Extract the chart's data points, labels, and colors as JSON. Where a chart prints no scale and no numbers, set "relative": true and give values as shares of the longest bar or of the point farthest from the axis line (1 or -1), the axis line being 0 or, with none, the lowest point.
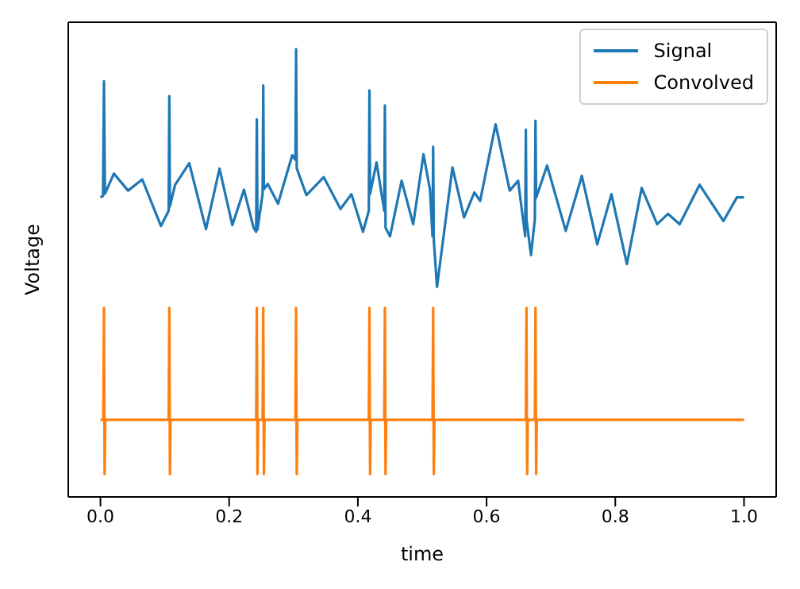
{
  "chart_data": {
    "type": "line",
    "xlabel": "time",
    "ylabel": "Voltage",
    "relative": true,
    "legend": "top right",
    "grid": false,
    "tick_labels": "x",
    "xlim": [
      -0.05,
      1.05
    ],
    "xticks": [
      {
        "value": 0,
        "label": "0.0"
      },
      {
        "value": 0.2,
        "label": "0.2"
      },
      {
        "value": 0.4,
        "label": "0.4"
      },
      {
        "value": 0.6,
        "label": "0.6"
      },
      {
        "value": 0.8,
        "label": "0.8"
      },
      {
        "value": 1,
        "label": "1.0"
      }
    ],
    "series": [
      {
        "name": "Signal",
        "color": "#1f77b4",
        "x": [
          0,
          0.004,
          0.0055,
          0.007,
          0.021,
          0.043,
          0.065,
          0.094,
          0.106,
          0.107,
          0.108,
          0.116,
          0.138,
          0.164,
          0.185,
          0.205,
          0.223,
          0.238,
          0.242,
          0.243,
          0.244,
          0.252,
          0.253,
          0.254,
          0.26,
          0.276,
          0.298,
          0.303,
          0.304,
          0.305,
          0.32,
          0.347,
          0.373,
          0.39,
          0.408,
          0.417,
          0.418,
          0.419,
          0.429,
          0.441,
          0.442,
          0.443,
          0.45,
          0.468,
          0.486,
          0.502,
          0.512,
          0.516,
          0.517,
          0.518,
          0.523,
          0.547,
          0.565,
          0.581,
          0.59,
          0.614,
          0.636,
          0.649,
          0.66,
          0.661,
          0.662,
          0.669,
          0.675,
          0.676,
          0.677,
          0.694,
          0.723,
          0.748,
          0.772,
          0.794,
          0.818,
          0.841,
          0.865,
          0.882,
          0.9,
          0.931,
          0.968,
          0.989,
          1
        ],
        "values": [
          0.669,
          0.672,
          0.928,
          0.677,
          0.722,
          0.684,
          0.709,
          0.605,
          0.639,
          0.895,
          0.649,
          0.697,
          0.745,
          0.598,
          0.733,
          0.607,
          0.686,
          0.601,
          0.592,
          0.843,
          0.597,
          0.677,
          0.919,
          0.687,
          0.699,
          0.655,
          0.763,
          0.753,
          1.0,
          0.734,
          0.674,
          0.714,
          0.643,
          0.676,
          0.592,
          0.639,
          0.908,
          0.677,
          0.747,
          0.639,
          0.874,
          0.601,
          0.582,
          0.706,
          0.609,
          0.765,
          0.687,
          0.582,
          0.782,
          0.573,
          0.469,
          0.736,
          0.624,
          0.68,
          0.661,
          0.832,
          0.684,
          0.706,
          0.582,
          0.82,
          0.62,
          0.54,
          0.62,
          0.84,
          0.668,
          0.74,
          0.594,
          0.717,
          0.564,
          0.676,
          0.52,
          0.69,
          0.609,
          0.632,
          0.609,
          0.697,
          0.616,
          0.669,
          0.669
        ]
      },
      {
        "name": "Convolved",
        "color": "#ff7f0e",
        "x": [
          0,
          0.0045,
          0.0055,
          0.0065,
          0.0075,
          0.106,
          0.107,
          0.108,
          0.109,
          0.242,
          0.243,
          0.244,
          0.245,
          0.252,
          0.253,
          0.254,
          0.255,
          0.303,
          0.304,
          0.305,
          0.306,
          0.417,
          0.418,
          0.419,
          0.42,
          0.441,
          0.442,
          0.443,
          0.444,
          0.516,
          0.517,
          0.518,
          0.519,
          0.661,
          0.662,
          0.663,
          0.664,
          0.675,
          0.676,
          0.677,
          0.678,
          1
        ],
        "values": [
          0.172,
          0.172,
          0.422,
          0.051,
          0.172,
          0.172,
          0.422,
          0.051,
          0.172,
          0.172,
          0.422,
          0.051,
          0.172,
          0.172,
          0.422,
          0.051,
          0.172,
          0.172,
          0.422,
          0.051,
          0.172,
          0.172,
          0.422,
          0.051,
          0.172,
          0.172,
          0.422,
          0.051,
          0.172,
          0.172,
          0.422,
          0.051,
          0.172,
          0.172,
          0.422,
          0.051,
          0.172,
          0.172,
          0.422,
          0.051,
          0.172,
          0.172
        ]
      }
    ]
  }
}
